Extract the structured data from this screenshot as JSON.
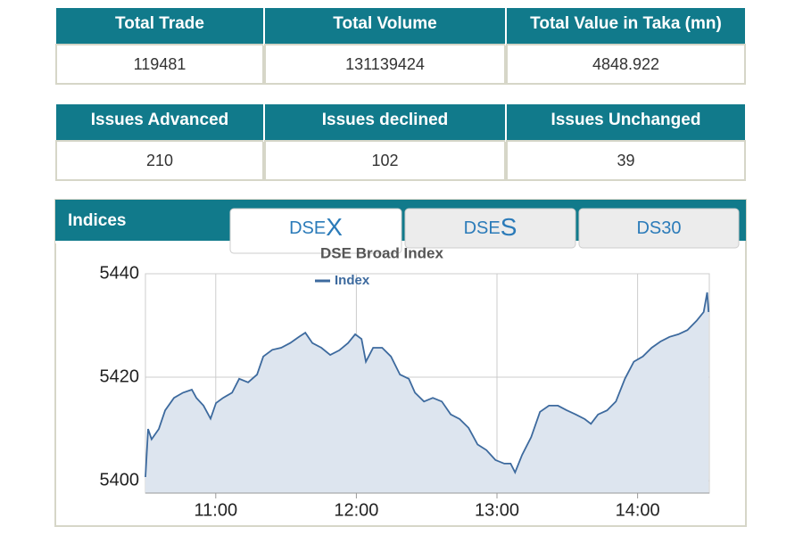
{
  "summary_table": {
    "headers": [
      "Total Trade",
      "Total Volume",
      "Total Value in Taka (mn)"
    ],
    "row": [
      "119481",
      "131139424",
      "4848.922"
    ]
  },
  "issues_table": {
    "headers": [
      "Issues Advanced",
      "Issues declined",
      "Issues Unchanged"
    ],
    "row": [
      "210",
      "102",
      "39"
    ]
  },
  "panel": {
    "title": "Indices",
    "tabs": [
      [
        "DSE",
        "X"
      ],
      [
        "DSE",
        "S"
      ],
      [
        "DS30"
      ]
    ]
  },
  "chart_data": {
    "type": "line",
    "title": "DSE Broad Index",
    "x": [
      10.5,
      10.519,
      10.544,
      10.595,
      10.64,
      10.703,
      10.767,
      10.83,
      10.862,
      10.913,
      10.963,
      11.002,
      11.052,
      11.116,
      11.167,
      11.23,
      11.294,
      11.338,
      11.402,
      11.465,
      11.529,
      11.592,
      11.637,
      11.687,
      11.751,
      11.814,
      11.878,
      11.941,
      11.992,
      12.037,
      12.068,
      12.119,
      12.183,
      12.246,
      12.31,
      12.373,
      12.417,
      12.481,
      12.544,
      12.608,
      12.671,
      12.735,
      12.798,
      12.862,
      12.925,
      12.989,
      13.052,
      13.097,
      13.129,
      13.179,
      13.243,
      13.306,
      13.37,
      13.433,
      13.497,
      13.56,
      13.624,
      13.668,
      13.719,
      13.783,
      13.846,
      13.91,
      13.973,
      14.037,
      14.1,
      14.163,
      14.227,
      14.29,
      14.354,
      14.419,
      14.47,
      14.495,
      14.505
    ],
    "series": [
      {
        "name": "Index",
        "color": "#3d6a9e",
        "values": [
          5400.7,
          5410,
          5408,
          5410,
          5413.6,
          5416,
          5417,
          5417.6,
          5416,
          5414.5,
          5412,
          5415,
          5416,
          5417,
          5419.7,
          5419,
          5420.5,
          5424,
          5425.3,
          5425.7,
          5426.6,
          5427.8,
          5428.6,
          5426.6,
          5425.7,
          5424.3,
          5425.2,
          5426.6,
          5428.3,
          5427.4,
          5423,
          5425.7,
          5425.7,
          5424,
          5420.5,
          5419.7,
          5417,
          5415.3,
          5416,
          5415.3,
          5412.8,
          5411.9,
          5410.2,
          5407,
          5405.9,
          5404,
          5403.3,
          5403.3,
          5401.6,
          5405,
          5408.4,
          5413.3,
          5414.5,
          5414.5,
          5413.6,
          5412.8,
          5411.9,
          5411,
          5412.8,
          5413.6,
          5415.3,
          5419.7,
          5423,
          5424,
          5425.7,
          5426.9,
          5427.8,
          5428.3,
          5429.1,
          5430.9,
          5432.6,
          5436.4,
          5432.6
        ]
      }
    ],
    "xlim": [
      10.5,
      14.51
    ],
    "xticks": [
      {
        "value": 11,
        "label": "11:00"
      },
      {
        "value": 12,
        "label": "12:00"
      },
      {
        "value": 13,
        "label": "13:00"
      },
      {
        "value": 14,
        "label": "14:00"
      }
    ],
    "ylim": [
      5397.6,
      5440
    ],
    "yticks": [
      5400,
      5420,
      5440
    ],
    "grid": true,
    "fill": "#dde5ef"
  }
}
